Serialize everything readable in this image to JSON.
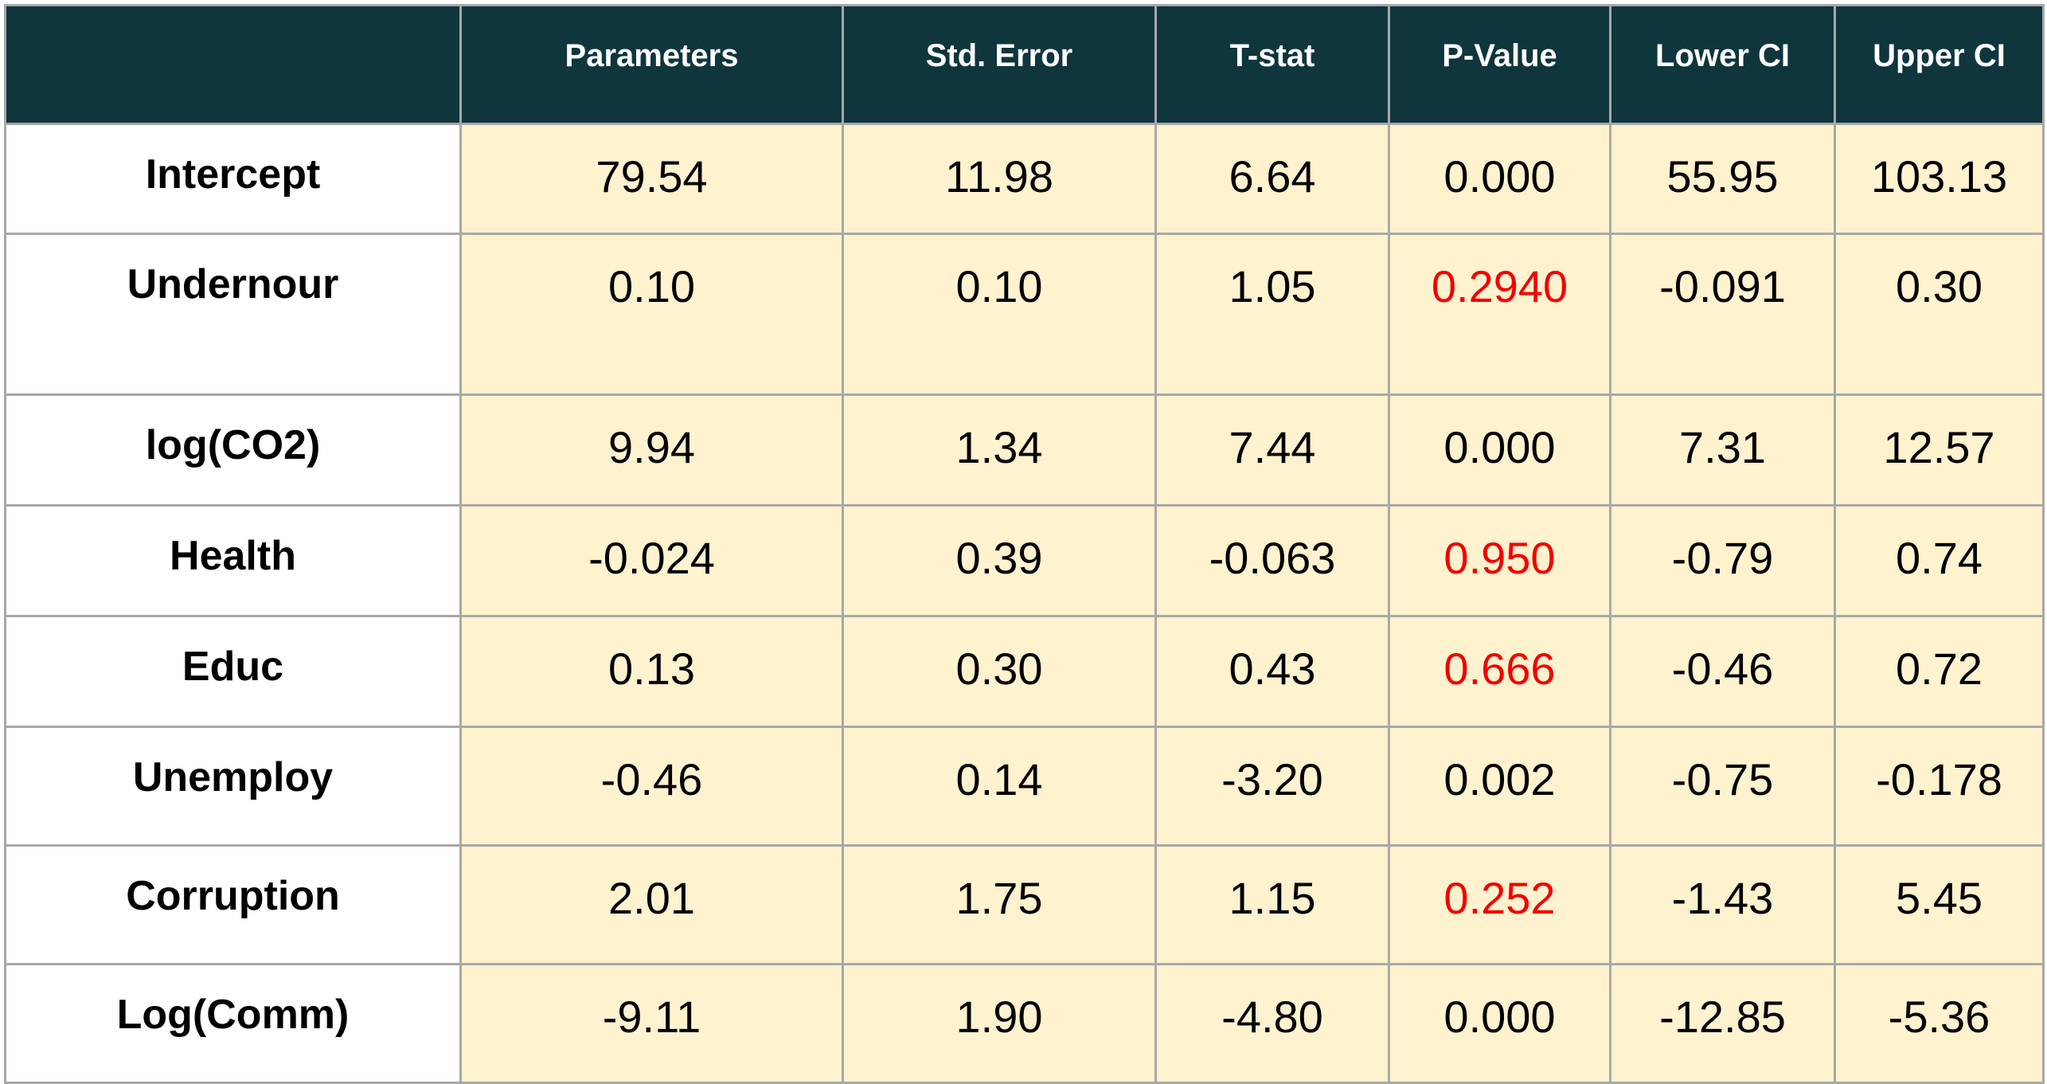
{
  "table": {
    "headers": [
      "",
      "Parameters",
      "Std. Error",
      "T-stat",
      "P-Value",
      "Lower CI",
      "Upper CI"
    ],
    "rows": [
      {
        "label": "Intercept",
        "values": [
          "79.54",
          "11.98",
          "6.64",
          "0.000",
          "55.95",
          "103.13"
        ],
        "pvalue_highlight": false
      },
      {
        "label": "Undernour",
        "values": [
          "0.10",
          "0.10",
          "1.05",
          "0.2940",
          "-0.091",
          "0.30"
        ],
        "pvalue_highlight": true
      },
      {
        "label": "log(CO2)",
        "values": [
          "9.94",
          "1.34",
          "7.44",
          "0.000",
          "7.31",
          "12.57"
        ],
        "pvalue_highlight": false
      },
      {
        "label": "Health",
        "values": [
          "-0.024",
          "0.39",
          "-0.063",
          "0.950",
          "-0.79",
          "0.74"
        ],
        "pvalue_highlight": true
      },
      {
        "label": "Educ",
        "values": [
          "0.13",
          "0.30",
          "0.43",
          "0.666",
          "-0.46",
          "0.72"
        ],
        "pvalue_highlight": true
      },
      {
        "label": "Unemploy",
        "values": [
          "-0.46",
          "0.14",
          "-3.20",
          "0.002",
          "-0.75",
          "-0.178"
        ],
        "pvalue_highlight": false
      },
      {
        "label": "Corruption",
        "values": [
          "2.01",
          "1.75",
          "1.15",
          "0.252",
          "-1.43",
          "5.45"
        ],
        "pvalue_highlight": true
      },
      {
        "label": "Log(Comm)",
        "values": [
          "-9.11",
          "1.90",
          "-4.80",
          "0.000",
          "-12.85",
          "-5.36"
        ],
        "pvalue_highlight": false
      }
    ]
  },
  "colors": {
    "header_background": "#0f353d",
    "header_text": "#ffffff",
    "cell_background": "#fff2cf",
    "label_background": "#ffffff",
    "grid_lines": "#a8a8a8",
    "insignificant_pvalue": "#f20000"
  }
}
